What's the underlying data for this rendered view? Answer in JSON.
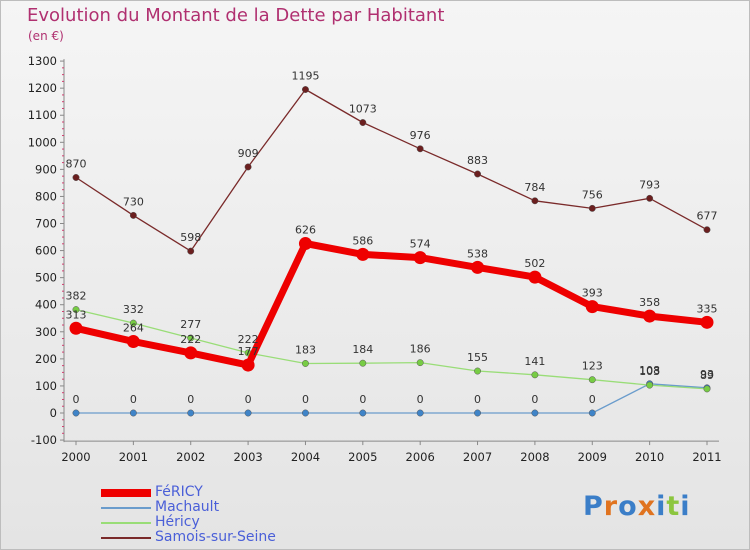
{
  "title": "Evolution du Montant de la Dette par Habitant",
  "subtitle": "(en €)",
  "logo": {
    "text": "Proxiti",
    "colors": [
      "#3b7ec8",
      "#e0731f",
      "#3b7ec8",
      "#e0731f",
      "#3b7ec8",
      "#8cc63f",
      "#3b7ec8"
    ]
  },
  "chart_data": {
    "type": "line",
    "title": "Evolution du Montant de la Dette par Habitant",
    "ylabel": "(en €)",
    "xlabel": "",
    "x": [
      "2000",
      "2001",
      "2002",
      "2003",
      "2004",
      "2005",
      "2006",
      "2007",
      "2008",
      "2009",
      "2010",
      "2011"
    ],
    "ylim": [
      -100,
      1300
    ],
    "yticks": [
      -100,
      0,
      100,
      200,
      300,
      400,
      500,
      600,
      700,
      800,
      900,
      1000,
      1100,
      1200,
      1300
    ],
    "grid": false,
    "legend_position": "bottom-left",
    "series": [
      {
        "name": "FéRICY",
        "color": "#ee0000",
        "values": [
          313,
          264,
          222,
          177,
          626,
          586,
          574,
          538,
          502,
          393,
          358,
          335
        ],
        "labels": [
          "313",
          "264",
          "222",
          "177",
          "626",
          "586",
          "574",
          "538",
          "502",
          "393",
          "358",
          "335"
        ]
      },
      {
        "name": "Machault",
        "color": "#6a9ccc",
        "values": [
          0,
          0,
          0,
          0,
          0,
          0,
          0,
          0,
          0,
          0,
          108,
          93
        ],
        "labels": [
          "0",
          "0",
          "0",
          "0",
          "0",
          "0",
          "0",
          "0",
          "0",
          "0",
          "108",
          "93"
        ]
      },
      {
        "name": "Héricy",
        "color": "#99dd77",
        "values": [
          382,
          332,
          277,
          222,
          183,
          184,
          186,
          155,
          141,
          123,
          103,
          89
        ],
        "labels": [
          "382",
          "332",
          "277",
          "222",
          "183",
          "184",
          "186",
          "155",
          "141",
          "123",
          "103",
          "89"
        ]
      },
      {
        "name": "Samois-sur-Seine",
        "color": "#7a2a2a",
        "values": [
          870,
          730,
          598,
          909,
          1195,
          1073,
          976,
          883,
          784,
          756,
          793,
          677
        ],
        "labels": [
          "870",
          "730",
          "598",
          "909",
          "1195",
          "1073",
          "976",
          "883",
          "784",
          "756",
          "793",
          "677"
        ]
      }
    ]
  }
}
